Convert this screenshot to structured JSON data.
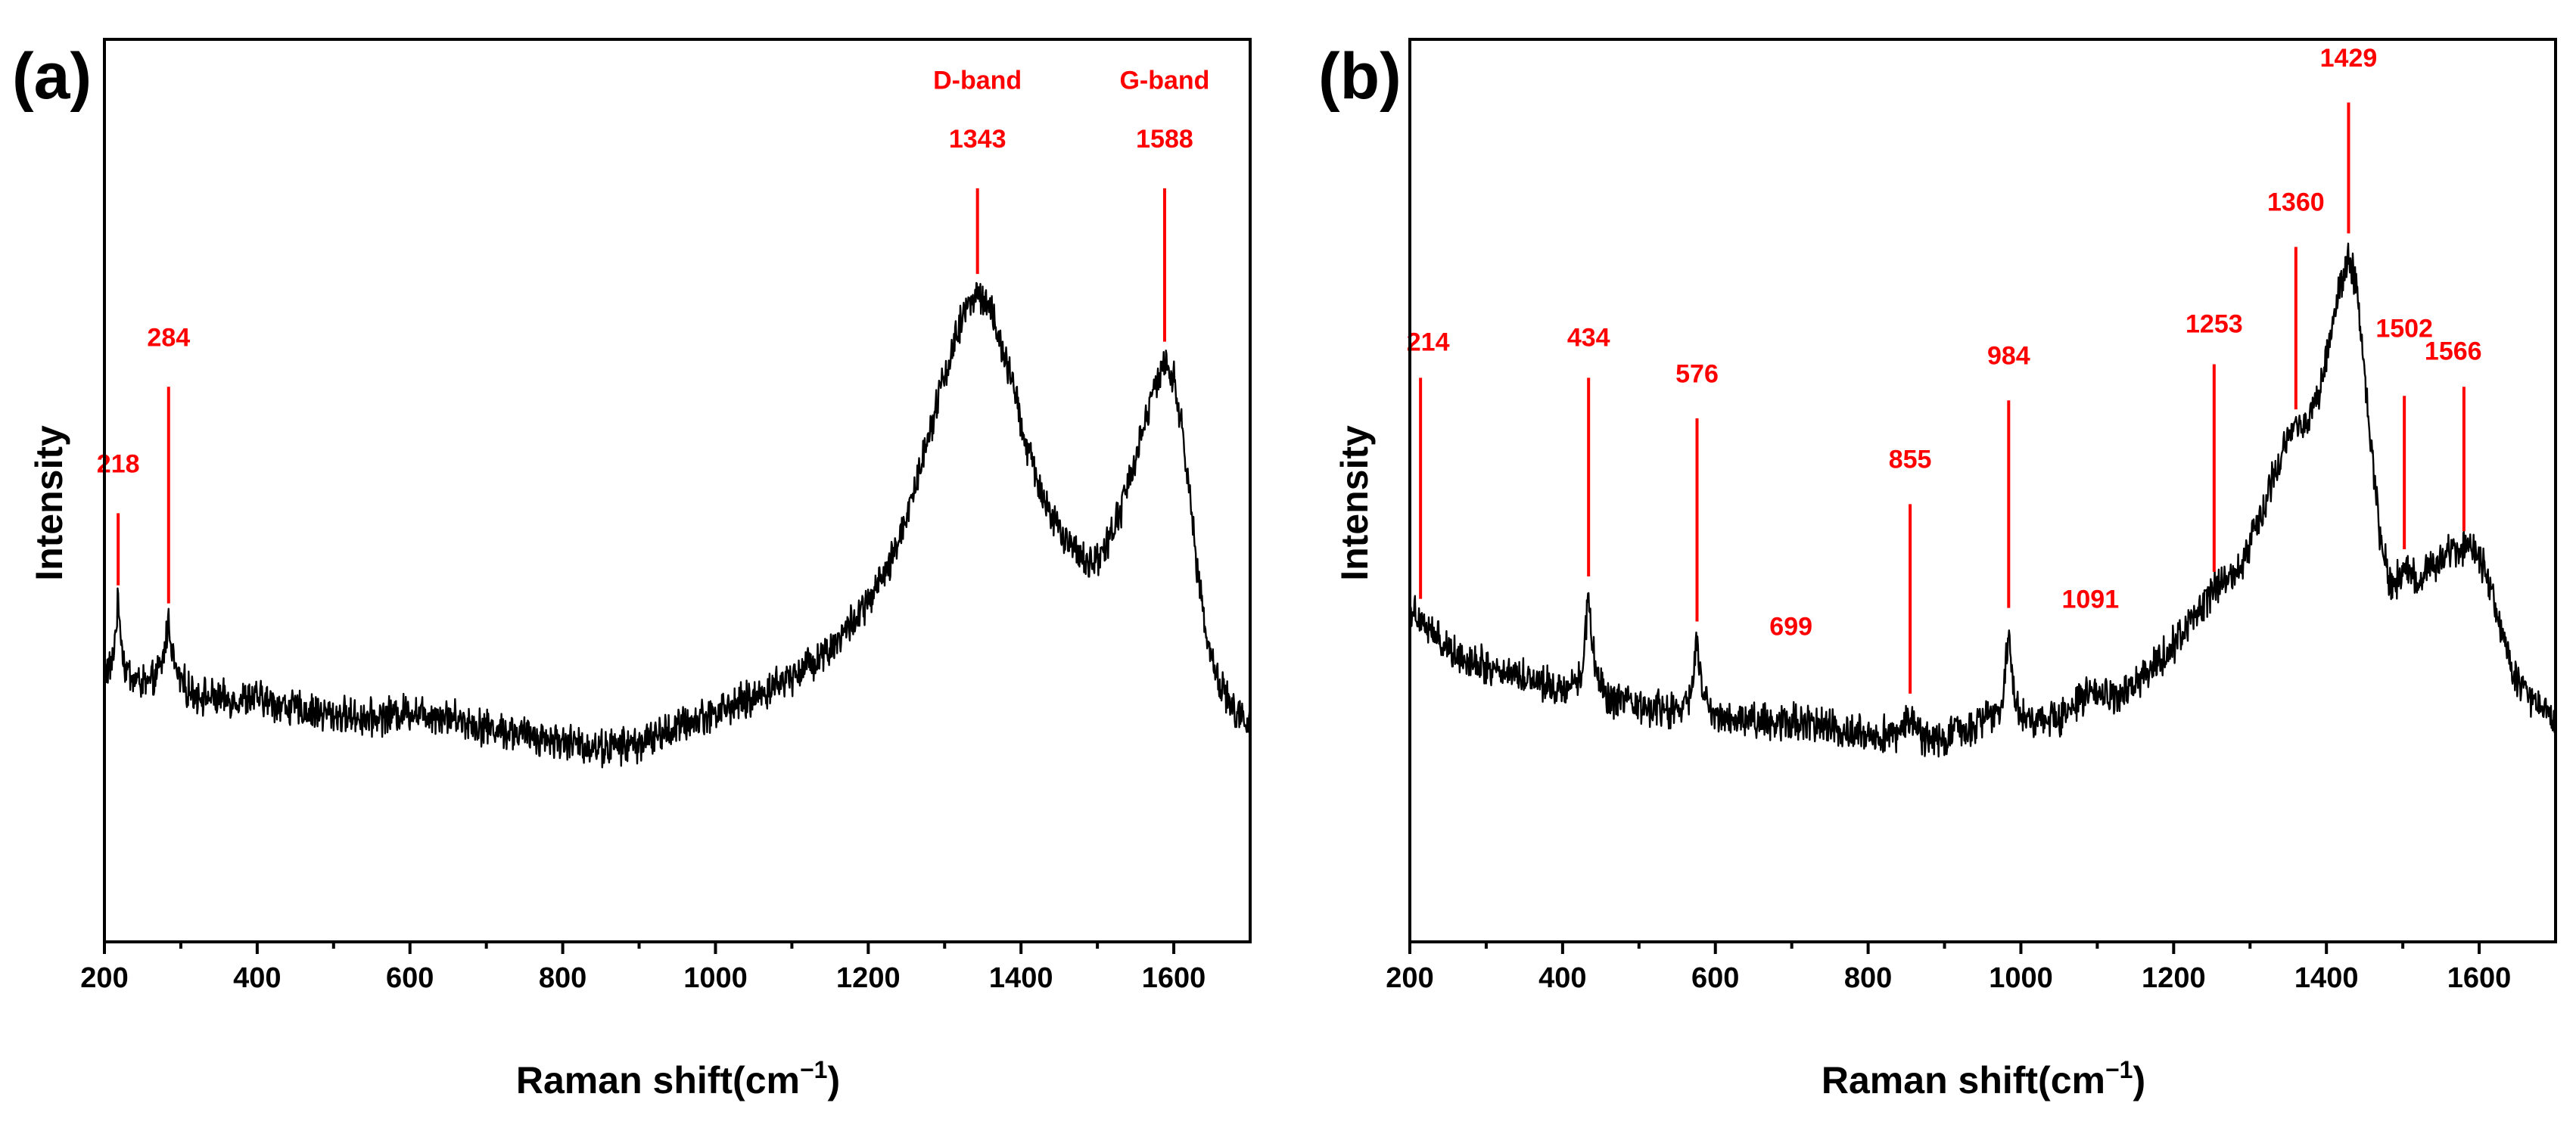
{
  "figure": {
    "description_colors": {
      "annotation": "#ff0000",
      "spectrum": "#000000",
      "axes": "#000000"
    }
  },
  "chart_data": [
    {
      "type": "line",
      "panel_label": "(a)",
      "xlabel": "Raman shift(cm",
      "xlabel_sup": "−1",
      "xlabel_close": ")",
      "ylabel": "Intensity",
      "xlim": [
        200,
        1700
      ],
      "ylim": [
        0,
        100
      ],
      "x_ticks": [
        200,
        400,
        600,
        800,
        1000,
        1200,
        1400,
        1600
      ],
      "y_ticks_shown": false,
      "spectrum_points": [
        [
          200,
          30.0
        ],
        [
          210,
          30.5
        ],
        [
          218,
          37.5
        ],
        [
          226,
          30.5
        ],
        [
          240,
          29.0
        ],
        [
          260,
          28.5
        ],
        [
          275,
          30.5
        ],
        [
          284,
          35.5
        ],
        [
          293,
          30.0
        ],
        [
          310,
          27.8
        ],
        [
          350,
          26.8
        ],
        [
          400,
          27.0
        ],
        [
          450,
          25.8
        ],
        [
          500,
          25.2
        ],
        [
          550,
          24.8
        ],
        [
          600,
          25.6
        ],
        [
          650,
          25.0
        ],
        [
          700,
          23.8
        ],
        [
          750,
          23.0
        ],
        [
          800,
          22.2
        ],
        [
          850,
          21.5
        ],
        [
          900,
          22.0
        ],
        [
          950,
          23.8
        ],
        [
          1000,
          25.5
        ],
        [
          1050,
          27.0
        ],
        [
          1100,
          29.5
        ],
        [
          1150,
          32.5
        ],
        [
          1200,
          37.5
        ],
        [
          1230,
          42.0
        ],
        [
          1260,
          50.0
        ],
        [
          1290,
          60.0
        ],
        [
          1315,
          67.0
        ],
        [
          1330,
          70.5
        ],
        [
          1343,
          72.0
        ],
        [
          1360,
          70.0
        ],
        [
          1385,
          63.0
        ],
        [
          1410,
          54.0
        ],
        [
          1440,
          47.0
        ],
        [
          1470,
          43.0
        ],
        [
          1490,
          42.0
        ],
        [
          1510,
          43.5
        ],
        [
          1535,
          49.0
        ],
        [
          1560,
          57.0
        ],
        [
          1578,
          62.0
        ],
        [
          1588,
          64.0
        ],
        [
          1600,
          62.5
        ],
        [
          1615,
          54.0
        ],
        [
          1630,
          42.0
        ],
        [
          1645,
          33.0
        ],
        [
          1660,
          28.5
        ],
        [
          1680,
          25.5
        ],
        [
          1700,
          24.0
        ]
      ],
      "noise_amplitude": 1.6,
      "annotations": [
        {
          "text": "218",
          "x": 218,
          "line_from_y": 39.5,
          "line_to_y": 47.5
        },
        {
          "text": "284",
          "x": 284,
          "line_from_y": 37.5,
          "line_to_y": 61.5,
          "label_y": 66.0
        },
        {
          "text": "1343",
          "x": 1343,
          "line_from_y": 74.0,
          "line_to_y": 83.5,
          "label_y": 88.0,
          "label_top": "D-band",
          "label_top_y": 94.5
        },
        {
          "text": "1588",
          "x": 1588,
          "line_from_y": 66.5,
          "line_to_y": 83.5,
          "label_y": 88.0,
          "label_top": "G-band",
          "label_top_y": 94.5
        }
      ]
    },
    {
      "type": "line",
      "panel_label": "(b)",
      "xlabel": "Raman shift(cm",
      "xlabel_sup": "−1",
      "xlabel_close": ")",
      "ylabel": "Intensity",
      "xlim": [
        200,
        1700
      ],
      "ylim": [
        0,
        100
      ],
      "x_ticks": [
        200,
        400,
        600,
        800,
        1000,
        1200,
        1400,
        1600
      ],
      "y_ticks_shown": false,
      "spectrum_points": [
        [
          200,
          37.0
        ],
        [
          214,
          36.0
        ],
        [
          230,
          34.0
        ],
        [
          260,
          32.0
        ],
        [
          300,
          30.5
        ],
        [
          350,
          29.5
        ],
        [
          400,
          28.0
        ],
        [
          425,
          29.5
        ],
        [
          434,
          38.5
        ],
        [
          443,
          29.5
        ],
        [
          460,
          26.8
        ],
        [
          500,
          26.0
        ],
        [
          550,
          25.5
        ],
        [
          568,
          27.0
        ],
        [
          576,
          33.5
        ],
        [
          584,
          27.0
        ],
        [
          600,
          25.0
        ],
        [
          650,
          24.5
        ],
        [
          699,
          24.5
        ],
        [
          750,
          23.8
        ],
        [
          800,
          23.0
        ],
        [
          840,
          23.0
        ],
        [
          855,
          25.5
        ],
        [
          870,
          22.5
        ],
        [
          900,
          22.5
        ],
        [
          950,
          24.5
        ],
        [
          975,
          26.0
        ],
        [
          984,
          35.0
        ],
        [
          993,
          26.0
        ],
        [
          1010,
          24.5
        ],
        [
          1050,
          25.0
        ],
        [
          1091,
          27.5
        ],
        [
          1130,
          27.0
        ],
        [
          1170,
          30.0
        ],
        [
          1210,
          34.0
        ],
        [
          1253,
          39.0
        ],
        [
          1290,
          42.0
        ],
        [
          1320,
          49.0
        ],
        [
          1345,
          55.0
        ],
        [
          1360,
          57.0
        ],
        [
          1375,
          58.0
        ],
        [
          1395,
          62.0
        ],
        [
          1415,
          72.0
        ],
        [
          1429,
          76.0
        ],
        [
          1440,
          72.0
        ],
        [
          1455,
          58.0
        ],
        [
          1470,
          45.0
        ],
        [
          1485,
          39.0
        ],
        [
          1502,
          41.5
        ],
        [
          1520,
          40.0
        ],
        [
          1545,
          42.0
        ],
        [
          1566,
          43.5
        ],
        [
          1585,
          44.0
        ],
        [
          1605,
          42.0
        ],
        [
          1625,
          36.0
        ],
        [
          1645,
          29.5
        ],
        [
          1670,
          26.5
        ],
        [
          1700,
          25.0
        ]
      ],
      "noise_amplitude": 1.6,
      "annotations": [
        {
          "text": "214",
          "x": 214,
          "line_from_y": 38.0,
          "line_to_y": 62.5,
          "label_y": 65.5,
          "label_dx": 10
        },
        {
          "text": "434",
          "x": 434,
          "line_from_y": 40.5,
          "line_to_y": 62.5,
          "label_y": 66.0
        },
        {
          "text": "576",
          "x": 576,
          "line_from_y": 35.5,
          "line_to_y": 58.0,
          "label_y": 62.0
        },
        {
          "text": "699",
          "x": 699,
          "label_only": true,
          "label_y": 34.0
        },
        {
          "text": "855",
          "x": 855,
          "line_from_y": 27.5,
          "line_to_y": 48.5,
          "label_y": 52.5
        },
        {
          "text": "984",
          "x": 984,
          "line_from_y": 37.0,
          "line_to_y": 60.0,
          "label_y": 64.0
        },
        {
          "text": "1091",
          "x": 1091,
          "label_only": true,
          "label_y": 37.0
        },
        {
          "text": "1253",
          "x": 1253,
          "line_from_y": 41.0,
          "line_to_y": 64.0,
          "label_y": 67.5
        },
        {
          "text": "1360",
          "x": 1360,
          "line_from_y": 59.0,
          "line_to_y": 77.0,
          "label_y": 81.0
        },
        {
          "text": "1429",
          "x": 1429,
          "line_from_y": 78.5,
          "line_to_y": 93.0,
          "label_y": 97.0
        },
        {
          "text": "1502",
          "x": 1502,
          "line_from_y": 43.5,
          "line_to_y": 60.5,
          "label_y": 67.0
        },
        {
          "text": "1566",
          "x": 1566,
          "line_from_y": 45.5,
          "line_to_y": 61.5,
          "label_y": 64.5,
          "line_x": 1580
        }
      ]
    }
  ]
}
